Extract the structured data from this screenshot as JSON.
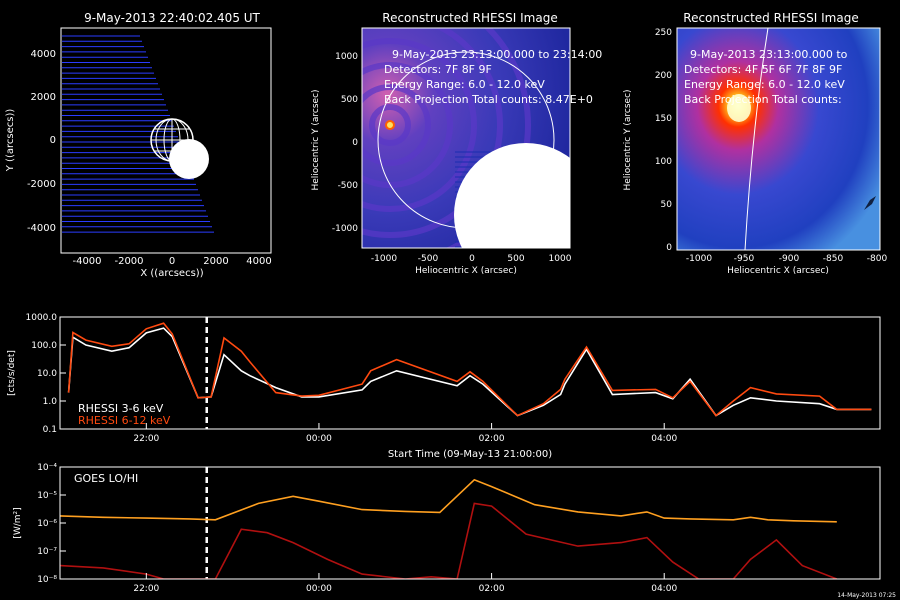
{
  "panels": {
    "orbit": {
      "title": "9-May-2013 22:40:02.405 UT",
      "xlabel": "X ((arcsecs))",
      "ylabel": "Y ((arcsecs))",
      "xticks": [
        "-4000",
        "-2000",
        "0",
        "2000",
        "4000"
      ],
      "yticks": [
        "4000",
        "2000",
        "0",
        "-2000",
        "-4000"
      ]
    },
    "image1": {
      "title": "Reconstructed RHESSI Image",
      "lines": [
        "9-May-2013 23:13:00.000 to 23:14:00",
        "Detectors: 7F 8F 9F",
        "Energy Range: 6.0 - 12.0 keV",
        "Back Projection    Total counts: 8.47E+0"
      ],
      "xlabel": "Heliocentric X (arcsec)",
      "ylabel": "Heliocentric Y (arcsec)",
      "xticks": [
        "-1000",
        "-500",
        "0",
        "500",
        "1000"
      ],
      "yticks": [
        "1000",
        "500",
        "0",
        "-500",
        "-1000"
      ]
    },
    "image2": {
      "title": "Reconstructed RHESSI Image",
      "lines": [
        "9-May-2013 23:13:00.000 to",
        "Detectors: 4F 5F 6F 7F 8F 9F",
        "Energy Range: 6.0 - 12.0 keV",
        "Back Projection    Total counts:"
      ],
      "xlabel": "Heliocentric X (arcsec)",
      "ylabel": "Heliocentric Y (arcsec)",
      "xticks": [
        "-1000",
        "-950",
        "-900",
        "-850",
        "-800"
      ],
      "yticks": [
        "250",
        "200",
        "150",
        "100",
        "50",
        "0"
      ]
    }
  },
  "chart_data": [
    {
      "type": "line",
      "title": "",
      "ylabel": "[cts/s/det]",
      "xlabel": "Start Time (09-May-13 21:00:00)",
      "x_unit": "hours since 09-May-13 21:00",
      "ylim": [
        0.1,
        1000
      ],
      "ylog": true,
      "yticks": [
        "1000.0",
        "100.0",
        "10.0",
        "1.0",
        "0.1"
      ],
      "xticks": [
        "22:00",
        "00:00",
        "02:00",
        "04:00"
      ],
      "legend": [
        "RHESSI  3-6 keV",
        "RHESSI  6-12 keV"
      ],
      "series": [
        {
          "name": "RHESSI  3-6 keV",
          "color": "#ffffff",
          "x": [
            0.1,
            0.15,
            0.3,
            0.6,
            0.8,
            1.0,
            1.2,
            1.3,
            1.6,
            1.75,
            1.9,
            2.1,
            2.2,
            2.5,
            2.8,
            3.0,
            3.5,
            3.6,
            3.9,
            4.6,
            4.75,
            4.9,
            5.3,
            5.6,
            5.8,
            5.85,
            6.1,
            6.4,
            6.9,
            7.1,
            7.3,
            7.6,
            7.8,
            8.0,
            8.3,
            8.8,
            9.0,
            9.4
          ],
          "y": [
            2,
            190,
            100,
            60,
            80,
            270,
            400,
            200,
            1.3,
            1.4,
            45,
            12,
            8,
            3,
            1.4,
            1.4,
            2.5,
            5,
            12,
            3.5,
            8,
            4,
            0.3,
            0.7,
            1.7,
            4,
            70,
            1.7,
            2,
            1.2,
            6,
            0.3,
            0.7,
            1.3,
            1,
            0.8,
            0.5,
            0.5
          ]
        },
        {
          "name": "RHESSI  6-12 keV",
          "color": "#ff4a10",
          "x": [
            0.1,
            0.15,
            0.3,
            0.6,
            0.8,
            1.0,
            1.2,
            1.3,
            1.6,
            1.75,
            1.9,
            2.1,
            2.2,
            2.5,
            2.8,
            3.0,
            3.5,
            3.6,
            3.9,
            4.6,
            4.75,
            4.9,
            5.3,
            5.6,
            5.8,
            5.85,
            6.1,
            6.4,
            6.9,
            7.1,
            7.3,
            7.6,
            7.8,
            8.0,
            8.3,
            8.8,
            9.0,
            9.4
          ],
          "y": [
            2,
            280,
            150,
            90,
            110,
            380,
            600,
            250,
            1.3,
            1.4,
            180,
            60,
            25,
            2,
            1.5,
            1.6,
            4,
            12,
            30,
            5,
            11,
            5,
            0.3,
            0.8,
            2.6,
            6,
            85,
            2.4,
            2.6,
            1.3,
            5,
            0.3,
            1,
            3,
            1.8,
            1.5,
            0.5,
            0.5
          ]
        }
      ],
      "markers": {
        "dashed_time": 1.7
      }
    },
    {
      "type": "line",
      "title": "",
      "legend_label": "GOES LO/HI",
      "ylabel": "[W/m²]",
      "xlabel": "Start Time (09-May-13 21:00:00)",
      "ylim": [
        1e-08,
        0.0001
      ],
      "ylog": true,
      "yticks": [
        "10⁻⁴",
        "10⁻⁵",
        "10⁻⁶",
        "10⁻⁷",
        "10⁻⁸"
      ],
      "xticks": [
        "22:00",
        "00:00",
        "02:00",
        "04:00"
      ],
      "corner_note": "14-May-2013 07:25",
      "series": [
        {
          "name": "GOES LO",
          "color": "#ffa020",
          "x": [
            0,
            0.5,
            1.0,
            1.5,
            1.8,
            2.3,
            2.7,
            3.0,
            3.5,
            4.0,
            4.4,
            4.8,
            5.0,
            5.5,
            6.0,
            6.5,
            6.8,
            7.0,
            7.3,
            7.8,
            8.0,
            8.2,
            8.5,
            9.0
          ],
          "y": [
            1.8e-06,
            1.6e-06,
            1.5e-06,
            1.4e-06,
            1.3e-06,
            5e-06,
            9e-06,
            6e-06,
            3e-06,
            2.6e-06,
            2.4e-06,
            3.5e-05,
            2e-05,
            4.5e-06,
            2.5e-06,
            1.8e-06,
            2.5e-06,
            1.5e-06,
            1.4e-06,
            1.3e-06,
            1.6e-06,
            1.3e-06,
            1.2e-06,
            1.1e-06
          ]
        },
        {
          "name": "GOES HI",
          "color": "#b01010",
          "x": [
            0,
            0.5,
            1.0,
            1.2,
            1.5,
            1.8,
            2.1,
            2.4,
            2.7,
            3.1,
            3.5,
            4.0,
            4.3,
            4.6,
            4.8,
            5.0,
            5.4,
            6.0,
            6.5,
            6.8,
            7.1,
            7.4,
            7.8,
            8.0,
            8.3,
            8.6,
            9.0
          ],
          "y": [
            3e-08,
            2.5e-08,
            1.5e-08,
            1e-08,
            1e-08,
            1e-08,
            6e-07,
            4.5e-07,
            2e-07,
            5e-08,
            1.5e-08,
            1e-08,
            1.2e-08,
            1e-08,
            5e-06,
            4e-06,
            4e-07,
            1.5e-07,
            2e-07,
            3e-07,
            4e-08,
            1e-08,
            1e-08,
            5e-08,
            2.5e-07,
            3e-08,
            1e-08
          ]
        }
      ],
      "markers": {
        "dashed_time": 1.7
      }
    }
  ]
}
